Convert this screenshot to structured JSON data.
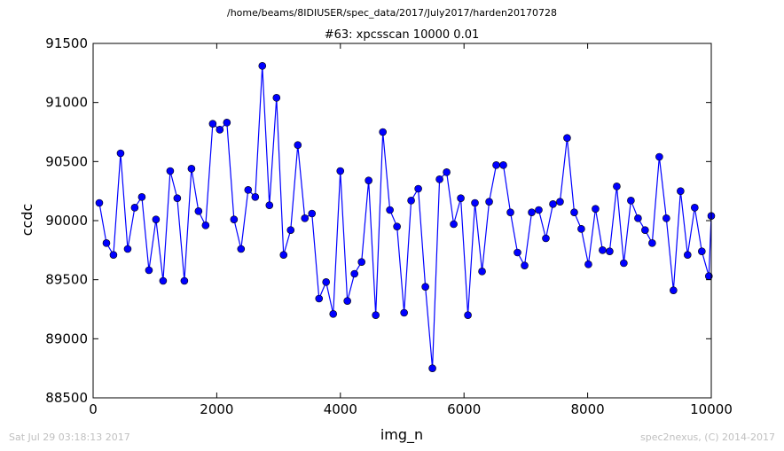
{
  "suptitle": "/home/beams/8IDIUSER/spec_data/2017/July2017/harden20170728",
  "footer": {
    "timestamp": "Sat Jul 29 03:18:13 2017",
    "credit": "spec2nexus, (C) 2014-2017"
  },
  "chart_data": {
    "type": "line",
    "title": "#63: xpcsscan 10000 0.01",
    "xlabel": "img_n",
    "ylabel": "ccdc",
    "xlim": [
      0,
      10000
    ],
    "ylim": [
      88500,
      91500
    ],
    "xticks": [
      0,
      2000,
      4000,
      6000,
      8000,
      10000
    ],
    "yticks": [
      88500,
      89000,
      89500,
      90000,
      90500,
      91000,
      91500
    ],
    "grid": false,
    "marker": "circle",
    "color": "#0000ff",
    "series": [
      {
        "x": [
          100,
          215,
          329,
          444,
          559,
          673,
          788,
          903,
          1017,
          1132,
          1247,
          1361,
          1476,
          1591,
          1705,
          1820,
          1935,
          2049,
          2164,
          2279,
          2393,
          2508,
          2623,
          2737,
          2852,
          2967,
          3081,
          3196,
          3311,
          3425,
          3540,
          3655,
          3769,
          3884,
          3999,
          4113,
          4228,
          4343,
          4457,
          4572,
          4687,
          4801,
          4916,
          5031,
          5145,
          5260,
          5375,
          5489,
          5604,
          5719,
          5833,
          5948,
          6063,
          6177,
          6292,
          6407,
          6521,
          6636,
          6751,
          6865,
          6980,
          7095,
          7209,
          7324,
          7439,
          7553,
          7668,
          7783,
          7897,
          8012,
          8127,
          8241,
          8356,
          8471,
          8585,
          8700,
          8815,
          8929,
          9044,
          9159,
          9273,
          9388,
          9503,
          9617,
          9732,
          9847,
          9961,
          10000
        ],
        "y": [
          90150,
          89810,
          89710,
          90570,
          89760,
          90110,
          90200,
          89580,
          90010,
          89490,
          90420,
          90190,
          89490,
          90440,
          90080,
          89960,
          90820,
          90770,
          90830,
          90010,
          89760,
          90260,
          90200,
          91310,
          90130,
          91040,
          89710,
          89920,
          90640,
          90020,
          90060,
          89340,
          89480,
          89210,
          90420,
          89320,
          89550,
          89650,
          90340,
          89200,
          90750,
          90090,
          89950,
          89220,
          90170,
          90270,
          89440,
          88750,
          90350,
          90410,
          89970,
          90190,
          89200,
          90150,
          89570,
          90160,
          90470,
          90470,
          90070,
          89730,
          89620,
          90070,
          90090,
          89850,
          90140,
          90160,
          90700,
          90070,
          89930,
          89630,
          90100,
          89750,
          89740,
          90290,
          89640,
          90170,
          90020,
          89920,
          89810,
          90540,
          90020,
          89410,
          90250,
          89710,
          90110,
          89740,
          89530,
          90040
        ]
      }
    ]
  }
}
